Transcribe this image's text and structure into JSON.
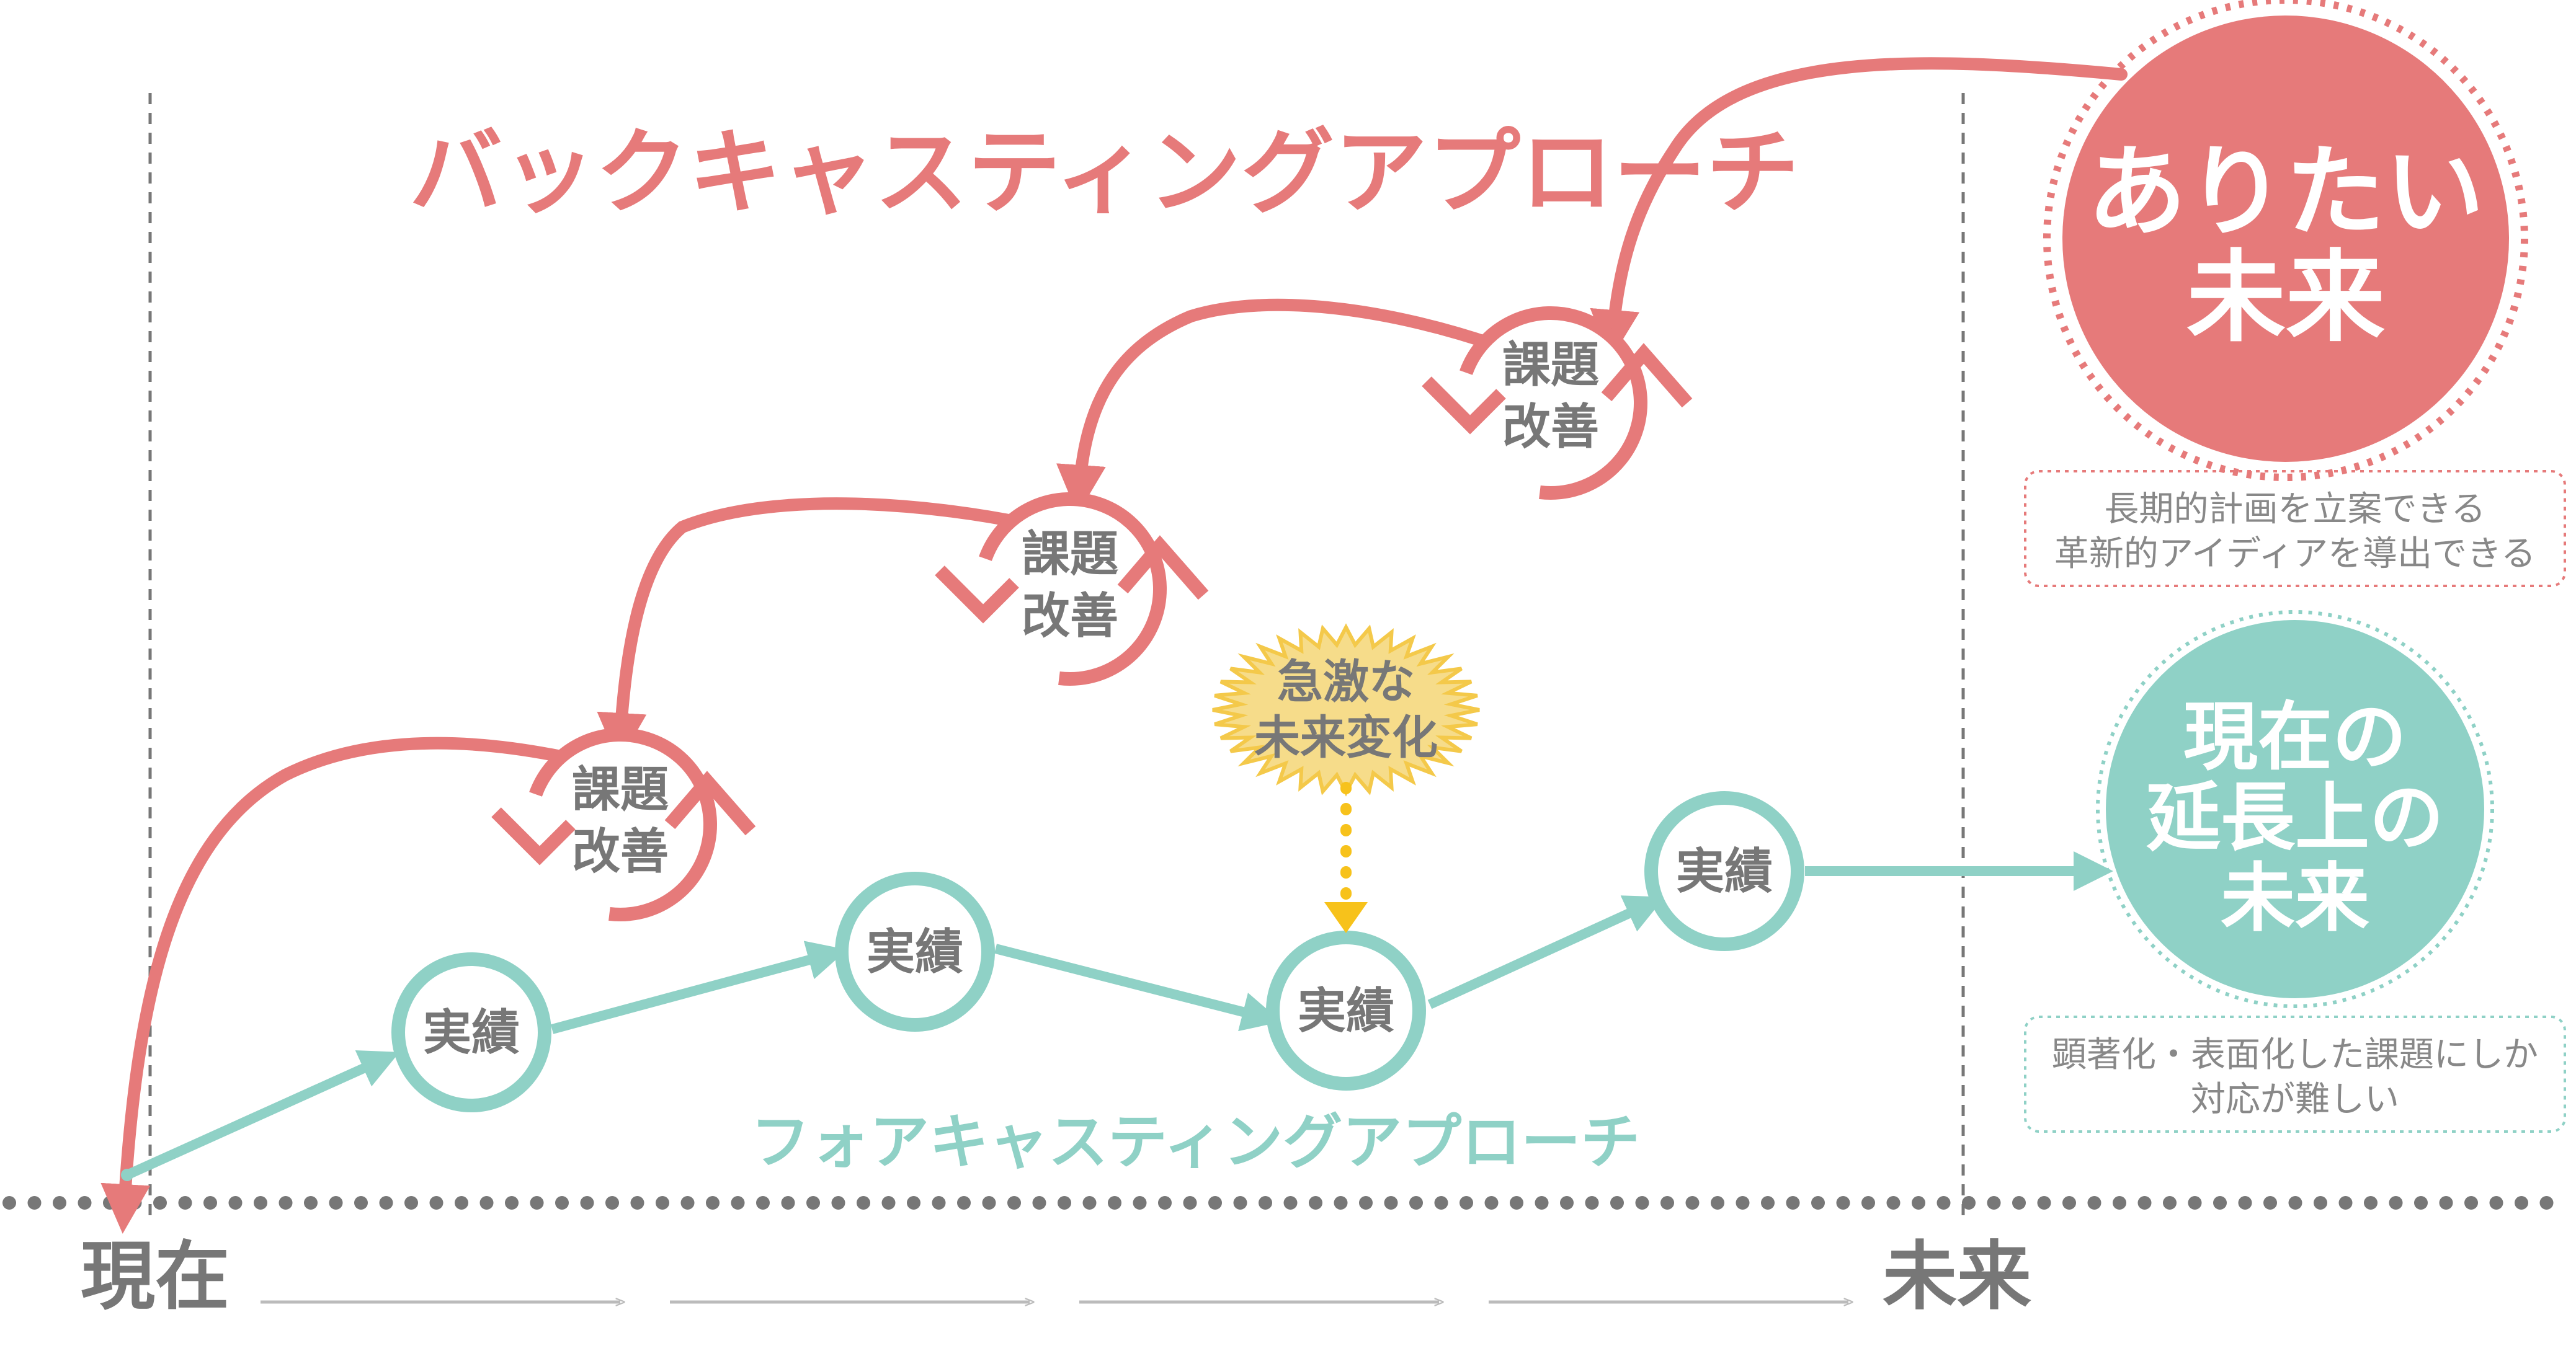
{
  "colors": {
    "backcast": "#E67A7A",
    "forecast": "#8FD1C6",
    "burst": "#F6DC8A",
    "burst_stroke": "#F4C94A",
    "arrow_yellow": "#F7C21B",
    "gray": "#777777",
    "dots": "#777777"
  },
  "titles": {
    "backcasting": "バックキャスティングアプローチ",
    "forecasting": "フォアキャスティングアプローチ"
  },
  "issue_nodes": [
    {
      "line1": "課題",
      "line2": "改善"
    },
    {
      "line1": "課題",
      "line2": "改善"
    },
    {
      "line1": "課題",
      "line2": "改善"
    }
  ],
  "result_nodes": [
    {
      "label": "実績"
    },
    {
      "label": "実績"
    },
    {
      "label": "実績"
    },
    {
      "label": "実績"
    }
  ],
  "burst": {
    "line1": "急激な",
    "line2": "未来変化"
  },
  "ideal_future": {
    "line1": "ありたい",
    "line2": "未来"
  },
  "ideal_note": {
    "line1": "長期的計画を立案できる",
    "line2": "革新的アイディアを導出できる"
  },
  "extension_future": {
    "line1": "現在の",
    "line2": "延長上の",
    "line3": "未来"
  },
  "extension_note": {
    "line1": "顕著化・表面化した課題にしか",
    "line2": "対応が難しい"
  },
  "axis": {
    "now": "現在",
    "future": "未来"
  }
}
